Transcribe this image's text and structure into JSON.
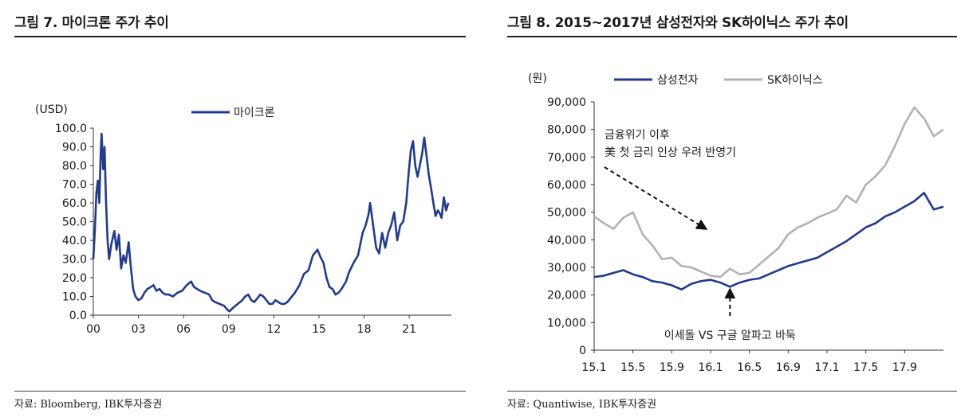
{
  "left_panel": {
    "title": "그림 7.  마이크론 주가 추이",
    "source": "자료: Bloomberg, IBK투자증권"
  },
  "right_panel": {
    "title": "그림 8.  2015~2017년 삼성전자와 SK하이닉스 주가 추이",
    "source": "자료: Quantiwise, IBK투자증권"
  },
  "colors": {
    "navy": "#1f3b8f",
    "gray": "#b2b2b2",
    "axis": "#333333"
  },
  "chart_data": [
    {
      "type": "line",
      "title": "",
      "ylabel": "(USD)",
      "xlabel": "",
      "ylim": [
        0,
        100
      ],
      "xlim": [
        2000,
        2023.8
      ],
      "y_ticks": [
        "0.0",
        "10.0",
        "20.0",
        "30.0",
        "40.0",
        "50.0",
        "60.0",
        "70.0",
        "80.0",
        "90.0",
        "100.0"
      ],
      "x_ticks": [
        "00",
        "03",
        "06",
        "09",
        "12",
        "15",
        "18",
        "21"
      ],
      "x_tick_values": [
        2000,
        2003,
        2006,
        2009,
        2012,
        2015,
        2018,
        2021
      ],
      "legend_position": "top-center",
      "series": [
        {
          "name": "마이크론",
          "color": "#1f3b8f",
          "points": [
            [
              2000.0,
              30
            ],
            [
              2000.1,
              45
            ],
            [
              2000.2,
              65
            ],
            [
              2000.3,
              72
            ],
            [
              2000.4,
              60
            ],
            [
              2000.5,
              88
            ],
            [
              2000.55,
              97
            ],
            [
              2000.65,
              78
            ],
            [
              2000.75,
              90
            ],
            [
              2000.85,
              60
            ],
            [
              2000.95,
              40
            ],
            [
              2001.05,
              30
            ],
            [
              2001.2,
              38
            ],
            [
              2001.4,
              45
            ],
            [
              2001.55,
              35
            ],
            [
              2001.7,
              43
            ],
            [
              2001.85,
              25
            ],
            [
              2002.0,
              32
            ],
            [
              2002.15,
              28
            ],
            [
              2002.35,
              39
            ],
            [
              2002.5,
              25
            ],
            [
              2002.65,
              14
            ],
            [
              2002.8,
              10
            ],
            [
              2003.0,
              8
            ],
            [
              2003.2,
              9
            ],
            [
              2003.4,
              12
            ],
            [
              2003.6,
              14
            ],
            [
              2003.8,
              15
            ],
            [
              2004.0,
              16
            ],
            [
              2004.2,
              13
            ],
            [
              2004.4,
              14
            ],
            [
              2004.6,
              12
            ],
            [
              2004.8,
              11
            ],
            [
              2005.0,
              11
            ],
            [
              2005.3,
              10
            ],
            [
              2005.6,
              12
            ],
            [
              2005.9,
              13
            ],
            [
              2006.2,
              16
            ],
            [
              2006.5,
              18
            ],
            [
              2006.7,
              15
            ],
            [
              2006.9,
              14
            ],
            [
              2007.1,
              13
            ],
            [
              2007.4,
              12
            ],
            [
              2007.7,
              11
            ],
            [
              2007.9,
              8
            ],
            [
              2008.1,
              7
            ],
            [
              2008.4,
              6
            ],
            [
              2008.7,
              5
            ],
            [
              2008.9,
              3
            ],
            [
              2009.05,
              2
            ],
            [
              2009.3,
              4
            ],
            [
              2009.6,
              6
            ],
            [
              2009.9,
              8
            ],
            [
              2010.1,
              10
            ],
            [
              2010.3,
              11
            ],
            [
              2010.5,
              8
            ],
            [
              2010.7,
              7
            ],
            [
              2010.9,
              9
            ],
            [
              2011.1,
              11
            ],
            [
              2011.3,
              10
            ],
            [
              2011.5,
              8
            ],
            [
              2011.7,
              6
            ],
            [
              2011.9,
              6
            ],
            [
              2012.1,
              8
            ],
            [
              2012.3,
              7
            ],
            [
              2012.5,
              6
            ],
            [
              2012.7,
              6
            ],
            [
              2012.9,
              7
            ],
            [
              2013.1,
              9
            ],
            [
              2013.4,
              12
            ],
            [
              2013.7,
              16
            ],
            [
              2014.0,
              22
            ],
            [
              2014.3,
              24
            ],
            [
              2014.6,
              32
            ],
            [
              2014.9,
              35
            ],
            [
              2015.1,
              31
            ],
            [
              2015.3,
              28
            ],
            [
              2015.5,
              20
            ],
            [
              2015.7,
              15
            ],
            [
              2015.9,
              14
            ],
            [
              2016.1,
              11
            ],
            [
              2016.3,
              12
            ],
            [
              2016.5,
              14
            ],
            [
              2016.8,
              18
            ],
            [
              2017.0,
              23
            ],
            [
              2017.3,
              28
            ],
            [
              2017.6,
              32
            ],
            [
              2017.9,
              44
            ],
            [
              2018.1,
              48
            ],
            [
              2018.3,
              54
            ],
            [
              2018.4,
              60
            ],
            [
              2018.6,
              48
            ],
            [
              2018.8,
              36
            ],
            [
              2019.0,
              33
            ],
            [
              2019.2,
              44
            ],
            [
              2019.4,
              36
            ],
            [
              2019.6,
              44
            ],
            [
              2019.8,
              48
            ],
            [
              2020.0,
              55
            ],
            [
              2020.2,
              40
            ],
            [
              2020.4,
              48
            ],
            [
              2020.6,
              50
            ],
            [
              2020.8,
              60
            ],
            [
              2020.95,
              75
            ],
            [
              2021.1,
              88
            ],
            [
              2021.25,
              93
            ],
            [
              2021.4,
              80
            ],
            [
              2021.55,
              74
            ],
            [
              2021.7,
              80
            ],
            [
              2021.85,
              86
            ],
            [
              2022.0,
              95
            ],
            [
              2022.15,
              85
            ],
            [
              2022.3,
              75
            ],
            [
              2022.45,
              68
            ],
            [
              2022.6,
              60
            ],
            [
              2022.75,
              53
            ],
            [
              2022.9,
              56
            ],
            [
              2023.0,
              55
            ],
            [
              2023.15,
              52
            ],
            [
              2023.3,
              63
            ],
            [
              2023.45,
              56
            ],
            [
              2023.6,
              60
            ]
          ]
        }
      ]
    },
    {
      "type": "line",
      "title": "",
      "ylabel": "(원)",
      "xlabel": "",
      "ylim": [
        0,
        90000
      ],
      "xlim": [
        0,
        36
      ],
      "y_ticks": [
        "0",
        "10,000",
        "20,000",
        "30,000",
        "40,000",
        "50,000",
        "60,000",
        "70,000",
        "80,000",
        "90,000"
      ],
      "y_tick_values": [
        0,
        10000,
        20000,
        30000,
        40000,
        50000,
        60000,
        70000,
        80000,
        90000
      ],
      "x_ticks": [
        "15.1",
        "15.5",
        "15.9",
        "16.1",
        "16.5",
        "16.9",
        "17.1",
        "17.5",
        "17.9"
      ],
      "x_tick_values": [
        0,
        4,
        8,
        12,
        16,
        20,
        24,
        28,
        32
      ],
      "legend_position": "top-left",
      "series": [
        {
          "name": "삼성전자",
          "color": "#1f3b8f",
          "points": [
            [
              0,
              26500
            ],
            [
              1,
              27000
            ],
            [
              2,
              28000
            ],
            [
              3,
              29000
            ],
            [
              4,
              27500
            ],
            [
              5,
              26500
            ],
            [
              6,
              25000
            ],
            [
              7,
              24500
            ],
            [
              8,
              23500
            ],
            [
              9,
              22000
            ],
            [
              10,
              24000
            ],
            [
              11,
              25000
            ],
            [
              12,
              25500
            ],
            [
              13,
              24500
            ],
            [
              14,
              23000
            ],
            [
              15,
              24500
            ],
            [
              16,
              25500
            ],
            [
              17,
              26000
            ],
            [
              18,
              27500
            ],
            [
              19,
              29000
            ],
            [
              20,
              30500
            ],
            [
              21,
              31500
            ],
            [
              22,
              32500
            ],
            [
              23,
              33500
            ],
            [
              24,
              35500
            ],
            [
              25,
              37500
            ],
            [
              26,
              39500
            ],
            [
              27,
              42000
            ],
            [
              28,
              44500
            ],
            [
              29,
              46000
            ],
            [
              30,
              48500
            ],
            [
              31,
              50000
            ],
            [
              32,
              52000
            ],
            [
              33,
              54000
            ],
            [
              34,
              57000
            ],
            [
              35,
              51000
            ],
            [
              36,
              52000
            ]
          ]
        },
        {
          "name": "SK하이닉스",
          "color": "#b2b2b2",
          "points": [
            [
              0,
              48500
            ],
            [
              1,
              46000
            ],
            [
              2,
              44000
            ],
            [
              3,
              48000
            ],
            [
              4,
              50000
            ],
            [
              5,
              42000
            ],
            [
              6,
              38000
            ],
            [
              7,
              33000
            ],
            [
              8,
              33500
            ],
            [
              9,
              30500
            ],
            [
              10,
              30000
            ],
            [
              11,
              28500
            ],
            [
              12,
              27000
            ],
            [
              13,
              26500
            ],
            [
              14,
              29500
            ],
            [
              15,
              27500
            ],
            [
              16,
              28000
            ],
            [
              17,
              31000
            ],
            [
              18,
              34000
            ],
            [
              19,
              37000
            ],
            [
              20,
              42000
            ],
            [
              21,
              44500
            ],
            [
              22,
              46000
            ],
            [
              23,
              48000
            ],
            [
              24,
              49500
            ],
            [
              25,
              51000
            ],
            [
              26,
              56000
            ],
            [
              27,
              53500
            ],
            [
              28,
              60000
            ],
            [
              29,
              63000
            ],
            [
              30,
              67000
            ],
            [
              31,
              74000
            ],
            [
              32,
              82000
            ],
            [
              33,
              88000
            ],
            [
              34,
              84000
            ],
            [
              35,
              77500
            ],
            [
              36,
              80000
            ]
          ]
        }
      ],
      "annotations": [
        {
          "text_lines": [
            "금융위기 이후",
            "美 첫 금리 인상 우려 반영기"
          ],
          "arrow_to": [
            11.5,
            44000
          ]
        },
        {
          "text_lines": [
            "이세돌 VS 구글 알파고 바둑"
          ],
          "arrow_to": [
            14,
            22500
          ]
        }
      ]
    }
  ]
}
